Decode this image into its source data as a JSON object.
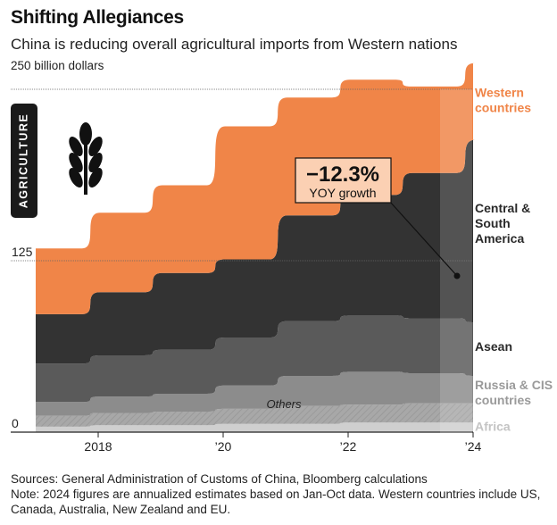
{
  "header": {
    "title": "Shifting Allegiances",
    "subtitle": "China is reducing overall agricultural imports from Western nations",
    "unit_label": "250 billion dollars"
  },
  "badge": {
    "label": "AGRICULTURE",
    "icon": "wheat-icon"
  },
  "callout": {
    "value": "−12.3%",
    "label": "YOY growth"
  },
  "inner_label": "Others",
  "footer": {
    "sources": "Sources: General Administration of Customs of China, Bloomberg calculations",
    "note": "Note: 2024 figures are annualized estimates based on Jan-Oct data. Western countries include US, Canada, Australia, New Zealand and EU."
  },
  "colors": {
    "western": "#f08548",
    "central_south_america": "#333333",
    "asean": "#5a5a5a",
    "russia_cis": "#8c8c8c",
    "others": "#a8a8a8",
    "africa": "#cfcfcf",
    "callout_fill": "#fbd0b3"
  },
  "chart_data": {
    "type": "area",
    "stacked": true,
    "title": "Shifting Allegiances",
    "ylabel": "billion dollars",
    "ylim": [
      0,
      250
    ],
    "y_ticks": [
      0,
      125,
      250
    ],
    "y_tick_labels": [
      "0",
      "125",
      "250"
    ],
    "x_ticks": [
      2018,
      2020,
      2022,
      2024
    ],
    "x_tick_labels": [
      "2018",
      "’20",
      "’22",
      "’24"
    ],
    "x": [
      2017,
      2018,
      2019,
      2020,
      2021,
      2022,
      2023,
      2024
    ],
    "stack_order": [
      "Africa",
      "Others",
      "Russia & CIS countries",
      "Asean",
      "Central & South America",
      "Western countries"
    ],
    "series": [
      {
        "name": "Africa",
        "label": "Africa",
        "color_key": "africa",
        "values": [
          4,
          5,
          5,
          6,
          6,
          7,
          7,
          7
        ]
      },
      {
        "name": "Others",
        "label": "Others",
        "color_key": "others",
        "values": [
          8,
          9,
          10,
          11,
          13,
          13,
          14,
          14
        ]
      },
      {
        "name": "Russia & CIS countries",
        "label": "Russia & CIS\ncountries",
        "color_key": "russia_cis",
        "values": [
          10,
          12,
          13,
          17,
          22,
          24,
          22,
          20
        ]
      },
      {
        "name": "Asean",
        "label": "Asean",
        "color_key": "asean",
        "values": [
          28,
          30,
          32,
          35,
          40,
          41,
          40,
          39
        ]
      },
      {
        "name": "Central & South America",
        "label": "Central &\nSouth\nAmerica",
        "color_key": "central_south_america",
        "values": [
          36,
          46,
          56,
          57,
          77,
          88,
          106,
          133
        ]
      },
      {
        "name": "Western countries",
        "label": "Western\ncountries",
        "color_key": "western",
        "values": [
          48,
          58,
          64,
          97,
          86,
          84,
          63,
          56
        ]
      }
    ],
    "annotation": {
      "series": "Western countries",
      "value": -12.3,
      "unit": "%",
      "text": "YOY growth"
    }
  }
}
